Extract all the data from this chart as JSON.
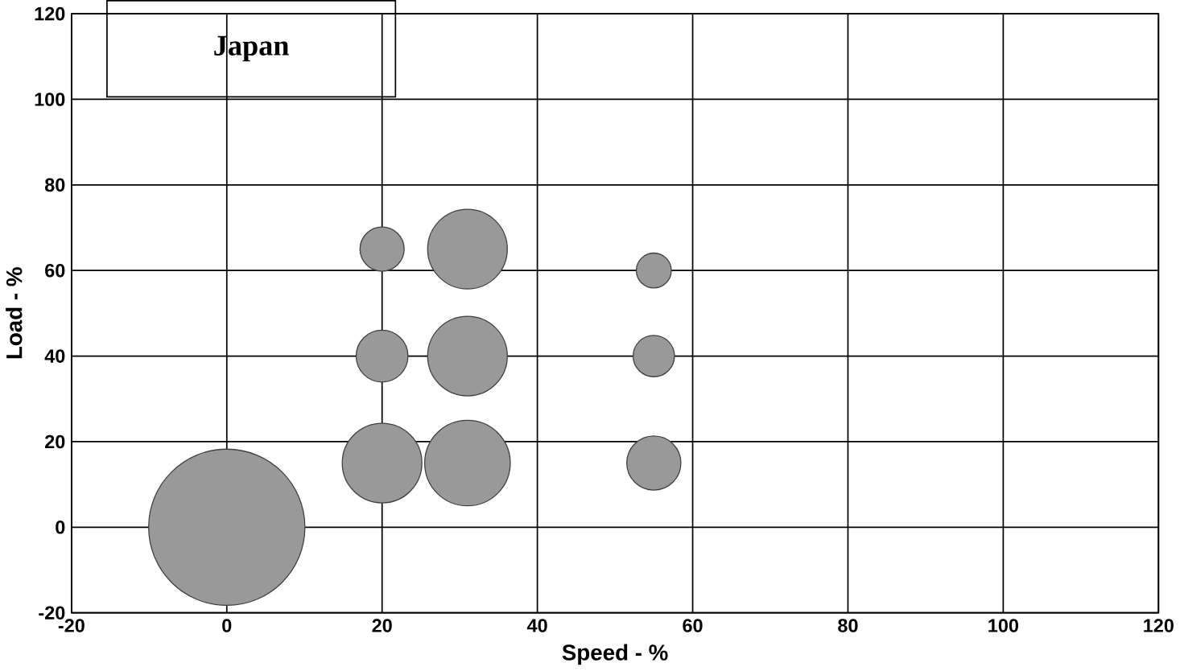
{
  "chart_data": {
    "type": "bubble",
    "title": "Japan",
    "xlabel": "Speed - %",
    "ylabel": "Load - %",
    "x": [
      0,
      20,
      20,
      20,
      31,
      31,
      31,
      55,
      55,
      55
    ],
    "values": [
      0,
      65,
      40,
      15,
      65,
      40,
      15,
      60,
      40,
      15
    ],
    "sizes": [
      1,
      0.08,
      0.11,
      0.26,
      0.26,
      0.26,
      0.3,
      0.05,
      0.07,
      0.12
    ],
    "color": "#999999",
    "xlim": [
      -20,
      120
    ],
    "ylim": [
      -20,
      120
    ],
    "xticks": [
      -20,
      0,
      20,
      40,
      60,
      80,
      100,
      120
    ],
    "yticks": [
      -20,
      0,
      20,
      40,
      60,
      80,
      100,
      120
    ],
    "grid": true,
    "marker": "circle"
  }
}
